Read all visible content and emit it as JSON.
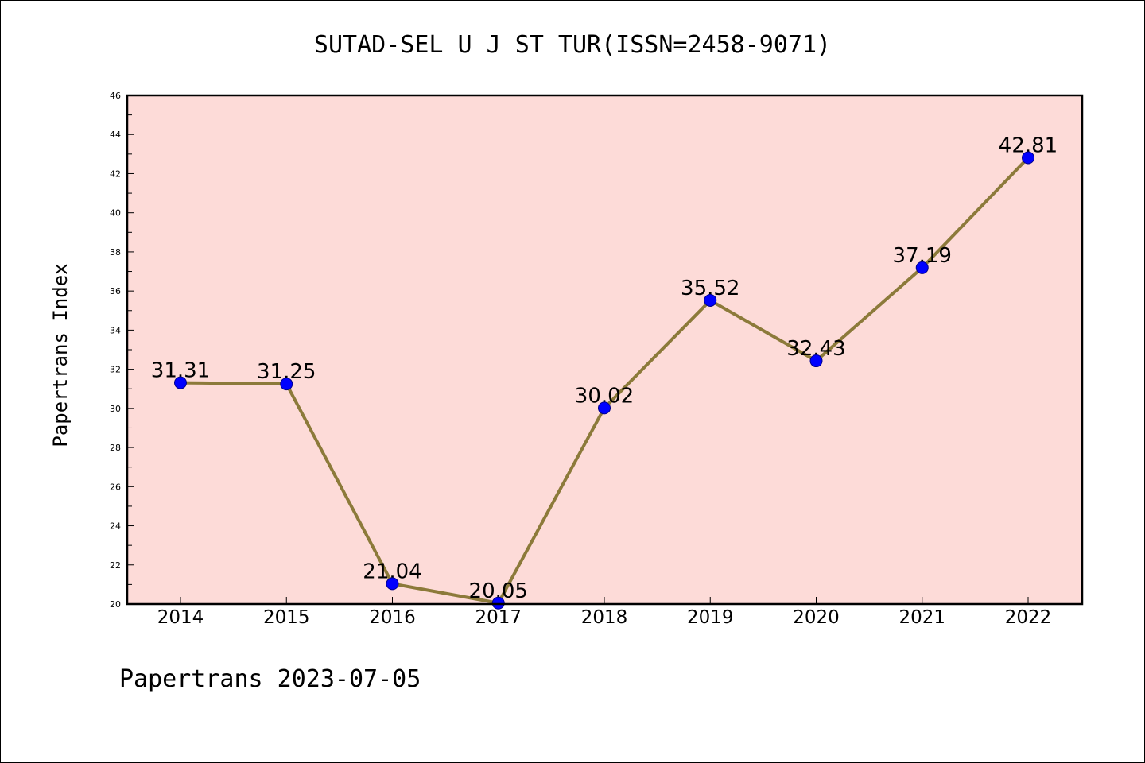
{
  "title": "SUTAD-SEL U J ST TUR(ISSN=2458-9071)",
  "footer": "Papertrans 2023-07-05",
  "colors": {
    "plot_background": "#fddbd8",
    "line": "#8c7a3a",
    "marker": "#0000ff",
    "axes": "#000000"
  },
  "chart_data": {
    "type": "line",
    "title": "SUTAD-SEL U J ST TUR(ISSN=2458-9071)",
    "xlabel": "",
    "ylabel": "Papertrans Index",
    "categories": [
      "2014",
      "2015",
      "2016",
      "2017",
      "2018",
      "2019",
      "2020",
      "2021",
      "2022"
    ],
    "series": [
      {
        "values": [
          31.31,
          31.25,
          21.04,
          20.05,
          30.02,
          35.52,
          32.43,
          37.19,
          42.81
        ],
        "labels": [
          "31.31",
          "31.25",
          "21.04",
          "20.05",
          "30.02",
          "35.52",
          "32.43",
          "37.19",
          "42.81"
        ]
      }
    ],
    "ylim": [
      20,
      46
    ],
    "yticks": [
      "20",
      "22",
      "24",
      "26",
      "28",
      "30",
      "32",
      "34",
      "36",
      "38",
      "40",
      "42",
      "44",
      "46"
    ],
    "grid": false,
    "legend": "none"
  }
}
